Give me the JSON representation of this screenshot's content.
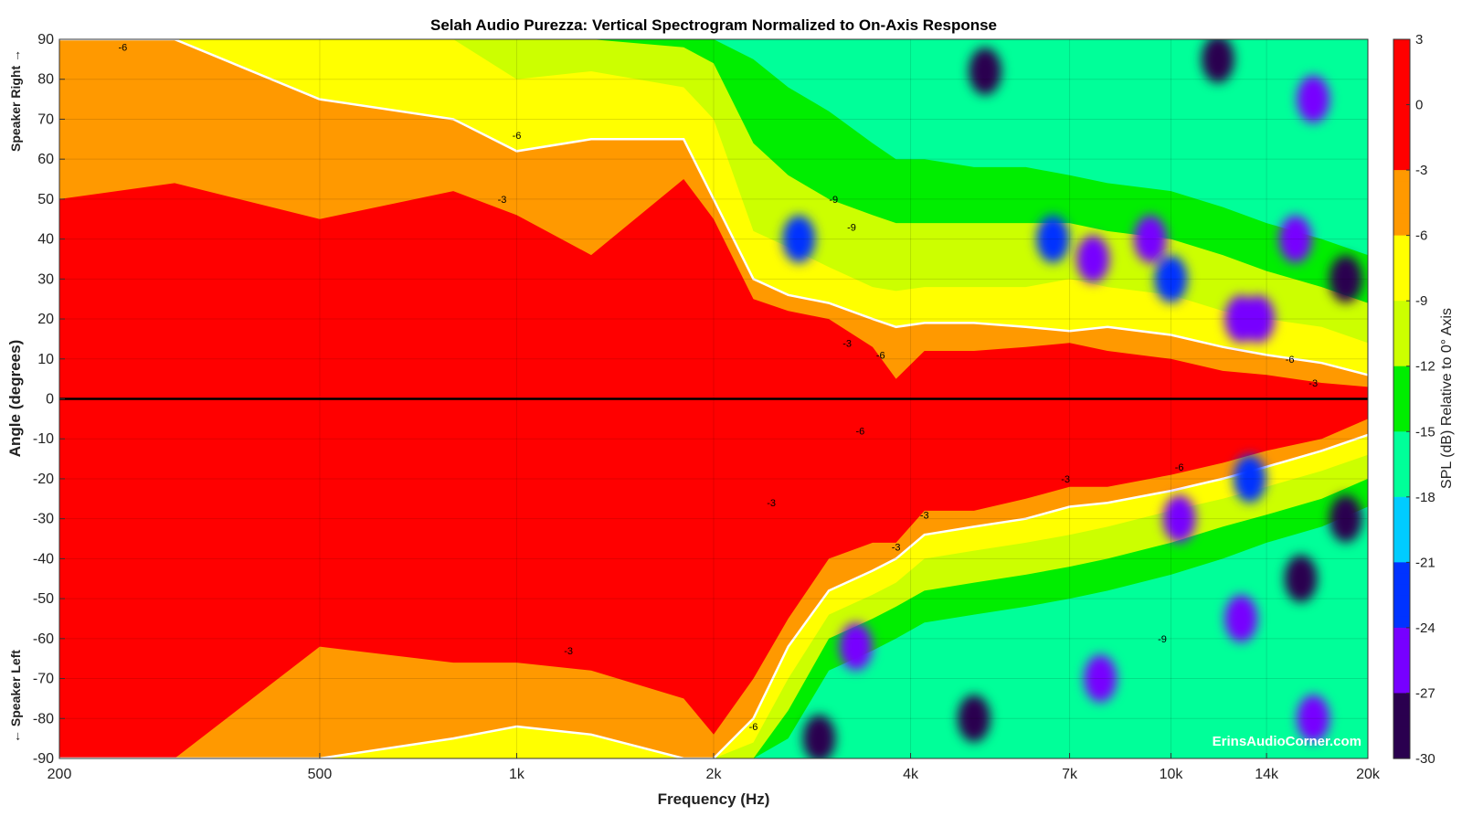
{
  "chart_data": {
    "type": "heatmap",
    "title": "Selah Audio Purezza: Vertical Spectrogram Normalized to On-Axis Response",
    "xlabel": "Frequency (Hz)",
    "ylabel": "Angle (degrees)",
    "y_side_top": "Speaker Right →",
    "y_side_bottom": "← Speaker Left",
    "x_scale": "log",
    "xlim": [
      200,
      20000
    ],
    "ylim": [
      -90,
      90
    ],
    "x_ticks": [
      {
        "value": 200,
        "label": "200"
      },
      {
        "value": 500,
        "label": "500"
      },
      {
        "value": 1000,
        "label": "1k"
      },
      {
        "value": 2000,
        "label": "2k"
      },
      {
        "value": 4000,
        "label": "4k"
      },
      {
        "value": 7000,
        "label": "7k"
      },
      {
        "value": 10000,
        "label": "10k"
      },
      {
        "value": 14000,
        "label": "14k"
      },
      {
        "value": 20000,
        "label": "20k"
      }
    ],
    "y_ticks": [
      90,
      80,
      70,
      60,
      50,
      40,
      30,
      20,
      10,
      0,
      -10,
      -20,
      -30,
      -40,
      -50,
      -60,
      -70,
      -80,
      -90
    ],
    "grid": true,
    "colorbar": {
      "label": "SPL (dB) Relative to 0° Axis",
      "range": [
        -30,
        3
      ],
      "ticks": [
        3,
        0,
        -3,
        -6,
        -9,
        -12,
        -15,
        -18,
        -21,
        -24,
        -27,
        -30
      ],
      "position": "right"
    },
    "levels": [
      {
        "min": -3,
        "color": "#ff0000"
      },
      {
        "min": -6,
        "color": "#ff9900"
      },
      {
        "min": -9,
        "color": "#ffff00"
      },
      {
        "min": -12,
        "color": "#ccff00"
      },
      {
        "min": -15,
        "color": "#00ee00"
      },
      {
        "min": -18,
        "color": "#00ff99"
      },
      {
        "min": -21,
        "color": "#00ccff"
      },
      {
        "min": -24,
        "color": "#0033ff"
      },
      {
        "min": -27,
        "color": "#7700ff"
      },
      {
        "min": -30,
        "color": "#2a004f"
      }
    ],
    "boundaries_upper": {
      "freq": [
        200,
        300,
        500,
        800,
        1000,
        1300,
        1800,
        2000,
        2300,
        2600,
        3000,
        3500,
        3800,
        4200,
        5000,
        6000,
        7000,
        8000,
        10000,
        12000,
        14000,
        17000,
        20000
      ],
      "minus3": [
        50,
        54,
        45,
        52,
        46,
        36,
        55,
        45,
        25,
        22,
        20,
        13,
        5,
        12,
        12,
        13,
        14,
        12,
        10,
        7,
        6,
        4,
        3
      ],
      "minus6": [
        90,
        90,
        75,
        70,
        62,
        65,
        65,
        50,
        30,
        26,
        24,
        20,
        18,
        19,
        19,
        18,
        17,
        18,
        16,
        13,
        11,
        9,
        6
      ],
      "minus9": [
        90,
        90,
        90,
        90,
        80,
        82,
        78,
        70,
        42,
        38,
        33,
        28,
        27,
        28,
        28,
        28,
        30,
        28,
        26,
        22,
        20,
        18,
        14
      ],
      "minus12": [
        90,
        90,
        90,
        90,
        90,
        90,
        88,
        84,
        64,
        56,
        50,
        46,
        44,
        44,
        44,
        44,
        44,
        42,
        40,
        36,
        32,
        28,
        24
      ],
      "minus15": [
        90,
        90,
        90,
        90,
        90,
        90,
        90,
        90,
        85,
        78,
        72,
        64,
        60,
        60,
        58,
        58,
        56,
        54,
        52,
        48,
        44,
        40,
        36
      ]
    },
    "boundaries_lower": {
      "freq": [
        200,
        300,
        500,
        800,
        1000,
        1300,
        1800,
        2000,
        2300,
        2600,
        3000,
        3500,
        3800,
        4200,
        5000,
        6000,
        7000,
        8000,
        10000,
        12000,
        14000,
        17000,
        20000
      ],
      "minus3": [
        -90,
        -90,
        -62,
        -66,
        -66,
        -68,
        -75,
        -84,
        -70,
        -55,
        -40,
        -36,
        -36,
        -28,
        -28,
        -25,
        -22,
        -22,
        -19,
        -16,
        -13,
        -10,
        -5
      ],
      "minus6": [
        -90,
        -90,
        -90,
        -85,
        -82,
        -84,
        -90,
        -90,
        -80,
        -62,
        -48,
        -43,
        -40,
        -34,
        -32,
        -30,
        -27,
        -26,
        -23,
        -20,
        -17,
        -13,
        -9
      ],
      "minus9": [
        -90,
        -90,
        -90,
        -90,
        -90,
        -90,
        -90,
        -90,
        -86,
        -70,
        -54,
        -49,
        -46,
        -40,
        -38,
        -36,
        -34,
        -32,
        -28,
        -25,
        -22,
        -18,
        -14
      ],
      "minus12": [
        -90,
        -90,
        -90,
        -90,
        -90,
        -90,
        -90,
        -90,
        -90,
        -78,
        -60,
        -55,
        -52,
        -48,
        -46,
        -44,
        -42,
        -40,
        -36,
        -32,
        -29,
        -25,
        -20
      ],
      "minus15": [
        -90,
        -90,
        -90,
        -90,
        -90,
        -90,
        -90,
        -90,
        -90,
        -85,
        -68,
        -63,
        -60,
        -56,
        -54,
        -52,
        -50,
        -48,
        -44,
        -40,
        -36,
        -32,
        -27
      ]
    },
    "deep_spots": [
      {
        "freq": 2700,
        "angle": 40,
        "level": -24
      },
      {
        "freq": 5200,
        "angle": 82,
        "level": -30
      },
      {
        "freq": 6600,
        "angle": 40,
        "level": -24
      },
      {
        "freq": 7600,
        "angle": 35,
        "level": -27
      },
      {
        "freq": 9300,
        "angle": 40,
        "level": -27
      },
      {
        "freq": 10000,
        "angle": 30,
        "level": -24
      },
      {
        "freq": 12800,
        "angle": 20,
        "level": -27
      },
      {
        "freq": 13600,
        "angle": 20,
        "level": -27
      },
      {
        "freq": 15500,
        "angle": 40,
        "level": -27
      },
      {
        "freq": 18500,
        "angle": 30,
        "level": -30
      },
      {
        "freq": 16500,
        "angle": 75,
        "level": -27
      },
      {
        "freq": 11800,
        "angle": 85,
        "level": -30
      },
      {
        "freq": 10300,
        "angle": -30,
        "level": -27
      },
      {
        "freq": 13200,
        "angle": -20,
        "level": -24
      },
      {
        "freq": 15800,
        "angle": -45,
        "level": -30
      },
      {
        "freq": 12800,
        "angle": -55,
        "level": -27
      },
      {
        "freq": 18500,
        "angle": -30,
        "level": -30
      },
      {
        "freq": 3300,
        "angle": -62,
        "level": -27
      },
      {
        "freq": 5000,
        "angle": -80,
        "level": -30
      },
      {
        "freq": 2900,
        "angle": -85,
        "level": -30
      },
      {
        "freq": 7800,
        "angle": -70,
        "level": -27
      },
      {
        "freq": 16500,
        "angle": -80,
        "level": -27
      }
    ],
    "contour_labels": [
      {
        "freq": 250,
        "angle": 88,
        "text": "-6"
      },
      {
        "freq": 950,
        "angle": 50,
        "text": "-3"
      },
      {
        "freq": 1000,
        "angle": 66,
        "text": "-6"
      },
      {
        "freq": 3050,
        "angle": 50,
        "text": "-9"
      },
      {
        "freq": 3250,
        "angle": 43,
        "text": "-9"
      },
      {
        "freq": 3200,
        "angle": 14,
        "text": "-3"
      },
      {
        "freq": 3600,
        "angle": 11,
        "text": "-6"
      },
      {
        "freq": 15200,
        "angle": 10,
        "text": "-6"
      },
      {
        "freq": 16500,
        "angle": 4,
        "text": "-3"
      },
      {
        "freq": 3350,
        "angle": -8,
        "text": "-6"
      },
      {
        "freq": 2450,
        "angle": -26,
        "text": "-3"
      },
      {
        "freq": 4200,
        "angle": -29,
        "text": "-3"
      },
      {
        "freq": 3800,
        "angle": -37,
        "text": "-3"
      },
      {
        "freq": 6900,
        "angle": -20,
        "text": "-3"
      },
      {
        "freq": 10300,
        "angle": -17,
        "text": "-6"
      },
      {
        "freq": 1200,
        "angle": -63,
        "text": "-3"
      },
      {
        "freq": 2300,
        "angle": -82,
        "text": "-6"
      },
      {
        "freq": 9700,
        "angle": -60,
        "text": "-9"
      }
    ]
  },
  "watermark": "ErinsAudioCorner.com"
}
